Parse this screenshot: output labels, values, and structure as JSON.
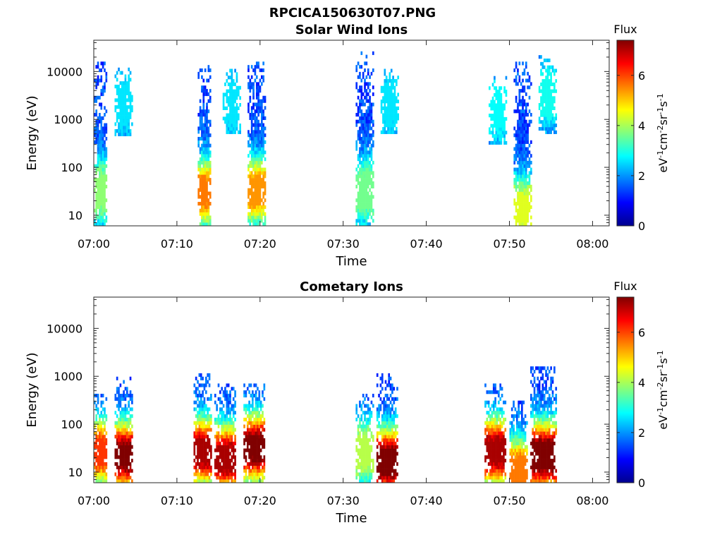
{
  "figure_title": "RPCICA150630T07.PNG",
  "colormap": [
    "#00008f",
    "#0000ff",
    "#0080ff",
    "#00ffff",
    "#80ff80",
    "#ffff00",
    "#ff8000",
    "#ff0000",
    "#800000"
  ],
  "chart_data": [
    {
      "type": "heatmap",
      "title": "Solar Wind Ions",
      "xlabel": "Time",
      "ylabel": "Energy (eV)",
      "y_scale": "log",
      "xlim": [
        "07:00",
        "08:02"
      ],
      "ylim": [
        6,
        45000
      ],
      "x_ticks": [
        "07:00",
        "07:10",
        "07:20",
        "07:30",
        "07:40",
        "07:50",
        "08:00"
      ],
      "y_ticks": [
        10,
        100,
        1000,
        10000
      ],
      "y_tick_labels": [
        "10",
        "100",
        "1000",
        "10000"
      ],
      "colorbar": {
        "title": "Flux",
        "label": "eV-1cm-2sr-1s-1",
        "range": [
          0,
          7.4
        ],
        "ticks": [
          0,
          2,
          4,
          6
        ]
      },
      "bursts": [
        {
          "start": "07:00",
          "end": "07:01.5",
          "e_top": 14000,
          "e_peak": 30,
          "peak_flux": 3.2
        },
        {
          "start": "07:02.5",
          "end": "07:04.5",
          "e_top": 11000,
          "e_bottom": 450,
          "e_peak": 2000,
          "peak_flux": 2.0
        },
        {
          "start": "07:12.5",
          "end": "07:14",
          "e_top": 14000,
          "e_peak": 28,
          "peak_flux": 5.0
        },
        {
          "start": "07:15.5",
          "end": "07:17.5",
          "e_top": 10000,
          "e_bottom": 500,
          "e_peak": 2000,
          "peak_flux": 2.0
        },
        {
          "start": "07:18.5",
          "end": "07:20.5",
          "e_top": 14000,
          "e_peak": 30,
          "peak_flux": 4.8
        },
        {
          "start": "07:31.5",
          "end": "07:33.5",
          "e_top": 25000,
          "e_peak": 30,
          "peak_flux": 3.0
        },
        {
          "start": "07:34.5",
          "end": "07:36.5",
          "e_top": 10000,
          "e_bottom": 500,
          "e_peak": 2000,
          "peak_flux": 2.0
        },
        {
          "start": "07:47.5",
          "end": "07:49.5",
          "e_top": 7000,
          "e_bottom": 300,
          "e_peak": 1500,
          "peak_flux": 2.2
        },
        {
          "start": "07:50.5",
          "end": "07:52.5",
          "e_top": 15000,
          "e_peak": 12,
          "peak_flux": 3.8
        },
        {
          "start": "07:53.5",
          "end": "07:55.5",
          "e_top": 20000,
          "e_bottom": 500,
          "e_peak": 3000,
          "peak_flux": 2.3
        }
      ]
    },
    {
      "type": "heatmap",
      "title": "Cometary Ions",
      "xlabel": "Time",
      "ylabel": "Energy (eV)",
      "y_scale": "log",
      "xlim": [
        "07:00",
        "08:02"
      ],
      "ylim": [
        6,
        45000
      ],
      "x_ticks": [
        "07:00",
        "07:10",
        "07:20",
        "07:30",
        "07:40",
        "07:50",
        "08:00"
      ],
      "y_ticks": [
        10,
        100,
        1000,
        10000
      ],
      "y_tick_labels": [
        "10",
        "100",
        "1000",
        "10000"
      ],
      "colorbar": {
        "title": "Flux",
        "label": "eV-1cm-2sr-1s-1",
        "range": [
          0,
          7.4
        ],
        "ticks": [
          0,
          2,
          4,
          6
        ]
      },
      "bursts": [
        {
          "start": "07:00",
          "end": "07:01.5",
          "e_top": 450,
          "e_peak": 25,
          "peak_flux": 5.5
        },
        {
          "start": "07:02.5",
          "end": "07:04.5",
          "e_top": 900,
          "e_peak": 20,
          "peak_flux": 6.8
        },
        {
          "start": "07:12",
          "end": "07:14",
          "e_top": 1100,
          "e_peak": 25,
          "peak_flux": 6.5
        },
        {
          "start": "07:14.5",
          "end": "07:17",
          "e_top": 700,
          "e_peak": 18,
          "peak_flux": 6.5
        },
        {
          "start": "07:18",
          "end": "07:20.5",
          "e_top": 700,
          "e_peak": 30,
          "peak_flux": 6.8
        },
        {
          "start": "07:31.5",
          "end": "07:33.5",
          "e_top": 400,
          "e_peak": 25,
          "peak_flux": 3.5
        },
        {
          "start": "07:34",
          "end": "07:36.5",
          "e_top": 1100,
          "e_peak": 15,
          "peak_flux": 7.0
        },
        {
          "start": "07:47",
          "end": "07:49.5",
          "e_top": 650,
          "e_peak": 25,
          "peak_flux": 6.5
        },
        {
          "start": "07:50",
          "end": "07:52",
          "e_top": 300,
          "e_peak": 10,
          "peak_flux": 5.0
        },
        {
          "start": "07:52.5",
          "end": "07:55.5",
          "e_top": 1600,
          "e_peak": 20,
          "peak_flux": 7.2
        }
      ]
    }
  ]
}
